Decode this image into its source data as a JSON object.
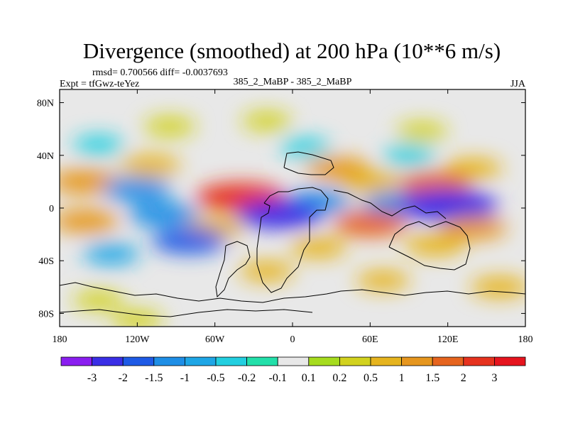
{
  "chart_data": {
    "type": "heatmap",
    "title": "Divergence (smoothed) at 200 hPa (10**6 m/s)",
    "stats_label": "rmsd= 0.700566 diff= -0.0037693",
    "expt_label": "Expt = tfGwz-teYez",
    "run_label": "385_2_MaBP - 385_2_MaBP",
    "season": "JJA",
    "xlim": [
      -180,
      180
    ],
    "ylim": [
      -90,
      90
    ],
    "x_ticks": [
      {
        "value": -180,
        "label": "180"
      },
      {
        "value": -120,
        "label": "120W"
      },
      {
        "value": -60,
        "label": "60W"
      },
      {
        "value": 0,
        "label": "0"
      },
      {
        "value": 60,
        "label": "60E"
      },
      {
        "value": 120,
        "label": "120E"
      },
      {
        "value": 180,
        "label": "180"
      }
    ],
    "y_ticks": [
      {
        "value": 80,
        "label": "80N"
      },
      {
        "value": 40,
        "label": "40N"
      },
      {
        "value": 0,
        "label": "0"
      },
      {
        "value": -40,
        "label": "40S"
      },
      {
        "value": -80,
        "label": "80S"
      }
    ],
    "colorbar": {
      "labels": [
        "-3",
        "-2",
        "-1.5",
        "-1",
        "-0.5",
        "-0.2",
        "-0.1",
        "0.1",
        "0.2",
        "0.5",
        "1",
        "1.5",
        "2",
        "3"
      ],
      "colors": [
        "#8a1ef0",
        "#3a2ee6",
        "#1e5ae6",
        "#1e8ee6",
        "#1ea6e6",
        "#22cfe0",
        "#22e0aa",
        "#e8e8e8",
        "#a6dc1e",
        "#d2d21e",
        "#e6b41e",
        "#e6961e",
        "#e6641e",
        "#e6321e",
        "#e6141e"
      ]
    },
    "fields": [
      {
        "lon": -95,
        "lat": 62,
        "value": 0.45
      },
      {
        "lon": -20,
        "lat": 66,
        "value": 0.35
      },
      {
        "lon": 100,
        "lat": 58,
        "value": 0.4
      },
      {
        "lon": -150,
        "lat": 48,
        "value": -0.4
      },
      {
        "lon": 10,
        "lat": 46,
        "value": -0.35
      },
      {
        "lon": 90,
        "lat": 40,
        "value": -0.45
      },
      {
        "lon": -110,
        "lat": 32,
        "value": 0.9
      },
      {
        "lon": 35,
        "lat": 30,
        "value": 1.1
      },
      {
        "lon": 140,
        "lat": 30,
        "value": 0.7
      },
      {
        "lon": -160,
        "lat": 20,
        "value": 1.4
      },
      {
        "lon": -120,
        "lat": 14,
        "value": -1.3
      },
      {
        "lon": 60,
        "lat": 20,
        "value": 0.9
      },
      {
        "lon": 110,
        "lat": 18,
        "value": 1.5
      },
      {
        "lon": -40,
        "lat": 8,
        "value": 2.4
      },
      {
        "lon": 20,
        "lat": 5,
        "value": -1.1
      },
      {
        "lon": 80,
        "lat": 3,
        "value": -1.2
      },
      {
        "lon": 120,
        "lat": 2,
        "value": -2.9
      },
      {
        "lon": -100,
        "lat": -5,
        "value": -1.4
      },
      {
        "lon": -10,
        "lat": -5,
        "value": -2.2
      },
      {
        "lon": -160,
        "lat": -10,
        "value": 1.2
      },
      {
        "lon": -60,
        "lat": -15,
        "value": 0.8
      },
      {
        "lon": 60,
        "lat": -12,
        "value": 1.6
      },
      {
        "lon": 140,
        "lat": -15,
        "value": 1.2
      },
      {
        "lon": -80,
        "lat": -25,
        "value": -1.6
      },
      {
        "lon": 20,
        "lat": -30,
        "value": 0.7
      },
      {
        "lon": 110,
        "lat": -28,
        "value": 0.9
      },
      {
        "lon": -140,
        "lat": -35,
        "value": -0.7
      },
      {
        "lon": -20,
        "lat": -48,
        "value": 0.6
      },
      {
        "lon": 70,
        "lat": -55,
        "value": 0.55
      },
      {
        "lon": -150,
        "lat": -70,
        "value": 0.4
      },
      {
        "lon": -120,
        "lat": -85,
        "value": 0.45
      },
      {
        "lon": 160,
        "lat": -60,
        "value": 0.8
      }
    ]
  }
}
